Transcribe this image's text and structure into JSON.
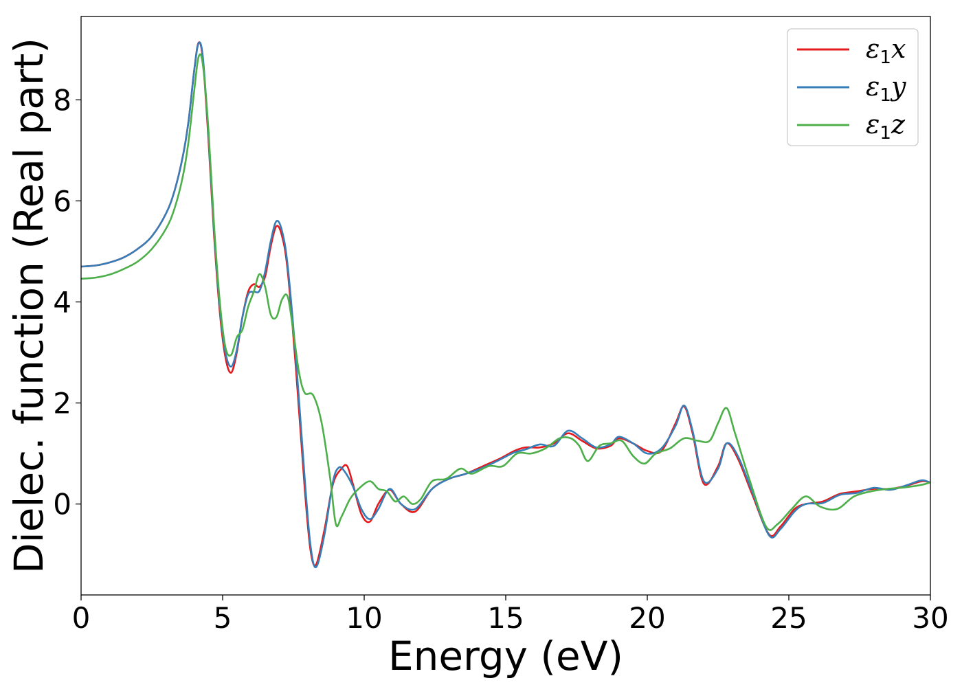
{
  "chart_data": {
    "type": "line",
    "title": "",
    "xlabel": "Energy (eV)",
    "ylabel": "Dielec. function (Real part)",
    "xlim": [
      0,
      30
    ],
    "ylim": [
      -1.8,
      9.65
    ],
    "xticks": [
      0,
      5,
      10,
      15,
      20,
      25,
      30
    ],
    "yticks": [
      0,
      2,
      4,
      6,
      8
    ],
    "grid": false,
    "legend_position": "top-right",
    "series": [
      {
        "name": "ε1x",
        "legend_base": "ε",
        "legend_sub": "1",
        "legend_var": "x",
        "color": "#e41a1c",
        "x": [
          0,
          0.5,
          1,
          1.5,
          2,
          2.5,
          3,
          3.3,
          3.6,
          3.8,
          4.0,
          4.15,
          4.3,
          4.5,
          4.7,
          4.9,
          5.1,
          5.3,
          5.5,
          5.7,
          5.9,
          6.1,
          6.3,
          6.5,
          6.7,
          6.9,
          7.1,
          7.3,
          7.6,
          7.9,
          8.1,
          8.3,
          8.6,
          8.9,
          9.2,
          9.4,
          9.6,
          9.9,
          10.2,
          10.5,
          10.9,
          11.3,
          11.8,
          12.4,
          13.0,
          13.6,
          14.2,
          14.8,
          15.3,
          15.7,
          16.2,
          16.7,
          17.2,
          17.7,
          18.2,
          18.7,
          19.0,
          19.5,
          20.0,
          20.5,
          21.0,
          21.3,
          21.6,
          22.0,
          22.5,
          22.8,
          23.2,
          23.7,
          24.3,
          24.7,
          25.2,
          25.6,
          26.2,
          26.8,
          27.4,
          28.0,
          28.6,
          29.2,
          29.7,
          30
        ],
        "y": [
          4.7,
          4.72,
          4.78,
          4.88,
          5.05,
          5.3,
          5.75,
          6.2,
          6.9,
          7.6,
          8.6,
          9.13,
          8.8,
          7.2,
          5.3,
          3.8,
          2.9,
          2.6,
          3.0,
          3.7,
          4.2,
          4.35,
          4.3,
          4.5,
          5.1,
          5.5,
          5.3,
          4.6,
          2.6,
          0.3,
          -0.9,
          -1.2,
          -0.5,
          0.4,
          0.7,
          0.75,
          0.4,
          -0.2,
          -0.35,
          0.0,
          0.28,
          0.0,
          -0.15,
          0.3,
          0.5,
          0.6,
          0.75,
          0.9,
          1.05,
          1.12,
          1.12,
          1.2,
          1.4,
          1.25,
          1.1,
          1.15,
          1.3,
          1.2,
          1.05,
          1.05,
          1.6,
          1.93,
          1.4,
          0.4,
          0.75,
          1.2,
          0.9,
          0.2,
          -0.6,
          -0.45,
          -0.1,
          0.0,
          0.05,
          0.2,
          0.25,
          0.3,
          0.3,
          0.37,
          0.45,
          0.43
        ]
      },
      {
        "name": "ε1y",
        "legend_base": "ε",
        "legend_sub": "1",
        "legend_var": "y",
        "color": "#377eb8",
        "x": [
          0,
          0.5,
          1,
          1.5,
          2,
          2.5,
          3,
          3.3,
          3.6,
          3.8,
          4.0,
          4.15,
          4.3,
          4.5,
          4.7,
          4.9,
          5.1,
          5.3,
          5.5,
          5.7,
          5.9,
          6.1,
          6.3,
          6.5,
          6.7,
          6.9,
          7.1,
          7.3,
          7.6,
          7.9,
          8.1,
          8.3,
          8.6,
          8.9,
          9.1,
          9.3,
          9.6,
          9.9,
          10.2,
          10.5,
          10.9,
          11.3,
          11.8,
          12.4,
          13.0,
          13.6,
          14.2,
          14.8,
          15.3,
          15.7,
          16.2,
          16.7,
          17.2,
          17.7,
          18.2,
          18.7,
          19.0,
          19.5,
          20.0,
          20.5,
          21.0,
          21.3,
          21.6,
          22.0,
          22.5,
          22.8,
          23.2,
          23.7,
          24.3,
          24.7,
          25.2,
          25.6,
          26.2,
          26.8,
          27.4,
          28.0,
          28.6,
          29.2,
          29.7,
          30
        ],
        "y": [
          4.7,
          4.72,
          4.78,
          4.88,
          5.05,
          5.3,
          5.75,
          6.2,
          6.9,
          7.6,
          8.6,
          9.12,
          8.85,
          7.3,
          5.4,
          3.9,
          3.0,
          2.72,
          3.05,
          3.7,
          4.15,
          4.2,
          4.22,
          4.6,
          5.2,
          5.6,
          5.4,
          4.7,
          2.8,
          0.5,
          -0.8,
          -1.25,
          -0.6,
          0.45,
          0.72,
          0.65,
          0.35,
          -0.1,
          -0.3,
          -0.1,
          0.3,
          0.0,
          -0.1,
          0.3,
          0.5,
          0.6,
          0.72,
          0.88,
          1.02,
          1.08,
          1.18,
          1.15,
          1.45,
          1.3,
          1.12,
          1.18,
          1.33,
          1.2,
          1.0,
          1.1,
          1.55,
          1.95,
          1.45,
          0.45,
          0.7,
          1.2,
          0.95,
          0.25,
          -0.62,
          -0.5,
          -0.15,
          0.0,
          0.02,
          0.18,
          0.22,
          0.32,
          0.28,
          0.38,
          0.47,
          0.42
        ]
      },
      {
        "name": "ε1z",
        "legend_base": "ε",
        "legend_sub": "1",
        "legend_var": "z",
        "color": "#4daf4a",
        "x": [
          0,
          0.5,
          1,
          1.5,
          2,
          2.5,
          3,
          3.3,
          3.6,
          3.8,
          4.0,
          4.15,
          4.3,
          4.5,
          4.7,
          4.9,
          5.1,
          5.3,
          5.5,
          5.7,
          5.9,
          6.1,
          6.3,
          6.5,
          6.7,
          6.9,
          7.1,
          7.3,
          7.5,
          7.7,
          7.9,
          8.2,
          8.5,
          8.8,
          9.0,
          9.2,
          9.5,
          9.8,
          10.2,
          10.5,
          10.8,
          11.1,
          11.4,
          11.7,
          12.0,
          12.4,
          12.9,
          13.4,
          13.8,
          14.4,
          14.9,
          15.4,
          15.9,
          16.4,
          16.9,
          17.3,
          17.6,
          17.9,
          18.3,
          18.7,
          19.1,
          19.5,
          19.9,
          20.3,
          20.8,
          21.3,
          21.8,
          22.2,
          22.5,
          22.8,
          23.1,
          23.6,
          24.2,
          24.6,
          25.1,
          25.6,
          26.1,
          26.7,
          27.3,
          27.9,
          28.5,
          29.1,
          29.7,
          30
        ],
        "y": [
          4.46,
          4.48,
          4.54,
          4.65,
          4.8,
          5.05,
          5.45,
          5.85,
          6.5,
          7.2,
          8.2,
          8.85,
          8.7,
          7.4,
          5.5,
          4.0,
          3.1,
          2.95,
          3.3,
          3.45,
          3.9,
          4.2,
          4.55,
          4.3,
          3.75,
          3.7,
          4.05,
          4.1,
          3.4,
          2.6,
          2.2,
          2.15,
          1.6,
          0.5,
          -0.4,
          -0.25,
          0.1,
          0.3,
          0.45,
          0.3,
          0.25,
          0.05,
          0.15,
          0.0,
          0.1,
          0.45,
          0.5,
          0.7,
          0.6,
          0.75,
          0.75,
          1.0,
          1.0,
          1.1,
          1.3,
          1.3,
          1.15,
          0.85,
          1.15,
          1.2,
          1.25,
          0.95,
          0.8,
          1.0,
          1.1,
          1.3,
          1.25,
          1.25,
          1.6,
          1.9,
          1.4,
          0.5,
          -0.45,
          -0.4,
          -0.1,
          0.15,
          -0.05,
          -0.1,
          0.15,
          0.25,
          0.3,
          0.33,
          0.38,
          0.43
        ]
      }
    ]
  }
}
